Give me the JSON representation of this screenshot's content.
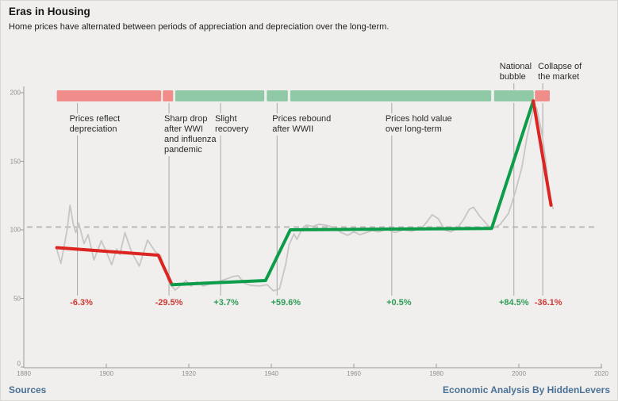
{
  "header": {
    "title": "Eras in Housing",
    "subtitle": "Home prices have alternated between periods of appreciation and depreciation over the long-term."
  },
  "footer": {
    "sources_label": "Sources",
    "credit": "Economic Analysis By HiddenLevers"
  },
  "colors": {
    "background": "#f0efed",
    "bar_red": "#f08c8a",
    "bar_green": "#90c9a5",
    "trend_red": "#dc2420",
    "trend_green": "#0d9c49",
    "index_gray": "#c7c6c4",
    "dashed_gray": "#bbbab8",
    "axis_gray": "#9a9a98",
    "era_line_gray": "#a8a7a5",
    "pct_red": "#d03a34",
    "pct_green": "#2f9e58",
    "footer_blue": "#4a7195"
  },
  "chart_data": {
    "type": "line",
    "title": "Eras in Housing",
    "x_axis": {
      "range": [
        1880,
        2020
      ],
      "ticks": [
        1880,
        1900,
        1920,
        1940,
        1960,
        1980,
        2000,
        2020
      ]
    },
    "y_axis": {
      "range": [
        0,
        210
      ],
      "ticks": [
        0,
        50,
        100,
        150,
        200
      ]
    },
    "reference_line": {
      "value": 102,
      "style": "dashed"
    },
    "eras": [
      {
        "name": "era-depreciation",
        "label_lines": [
          "Prices reflect",
          "depreciation"
        ],
        "change_pct": "-6.3%",
        "direction": "down",
        "start_year": 1888.0,
        "end_year": 1913.3,
        "tick_year": 1893.0,
        "label_position": "below"
      },
      {
        "name": "era-wwi-drop",
        "label_lines": [
          "Sharp drop",
          "after WWI",
          "and influenza",
          "pandemic"
        ],
        "change_pct": "-29.5%",
        "direction": "down",
        "start_year": 1913.7,
        "end_year": 1916.2,
        "tick_year": 1915.2,
        "label_position": "below"
      },
      {
        "name": "era-slight-recovery",
        "label_lines": [
          "Slight",
          "recovery"
        ],
        "change_pct": "+3.7%",
        "direction": "up",
        "start_year": 1916.7,
        "end_year": 1938.3,
        "tick_year": 1927.7,
        "label_position": "below"
      },
      {
        "name": "era-wwii-rebound",
        "label_lines": [
          "Prices rebound",
          "after WWII"
        ],
        "change_pct": "+59.6%",
        "direction": "up",
        "start_year": 1938.9,
        "end_year": 1944.0,
        "tick_year": 1941.4,
        "label_position": "below"
      },
      {
        "name": "era-hold-value",
        "label_lines": [
          "Prices hold value",
          "over long-term"
        ],
        "change_pct": "+0.5%",
        "direction": "up",
        "start_year": 1944.6,
        "end_year": 1993.3,
        "tick_year": 1969.2,
        "label_position": "below"
      },
      {
        "name": "era-national-bubble",
        "label_lines": [
          "National",
          "bubble"
        ],
        "change_pct": "+84.5%",
        "direction": "up",
        "start_year": 1994.0,
        "end_year": 2003.6,
        "tick_year": 1998.8,
        "label_position": "above"
      },
      {
        "name": "era-collapse",
        "label_lines": [
          "Collapse of",
          "the market"
        ],
        "change_pct": "-36.1%",
        "direction": "down",
        "start_year": 2003.9,
        "end_year": 2007.5,
        "tick_year": 2005.8,
        "label_position": "above"
      }
    ],
    "trend_segments": [
      {
        "direction": "down",
        "points": [
          [
            1888,
            87
          ],
          [
            1912.6,
            81.5
          ],
          [
            1915.9,
            60
          ]
        ]
      },
      {
        "direction": "up",
        "points": [
          [
            1915.9,
            60
          ],
          [
            1938.6,
            63
          ],
          [
            1944.6,
            100
          ],
          [
            1993.4,
            101
          ],
          [
            2003.5,
            194
          ]
        ]
      },
      {
        "direction": "down",
        "points": [
          [
            2003.5,
            194
          ],
          [
            2007.8,
            118
          ]
        ]
      }
    ],
    "index_series": {
      "name": "home-price-index",
      "points": [
        [
          1888,
          86
        ],
        [
          1889,
          75.5
        ],
        [
          1890.5,
          100
        ],
        [
          1891.2,
          118
        ],
        [
          1892,
          104
        ],
        [
          1892.6,
          98
        ],
        [
          1893.3,
          105
        ],
        [
          1894.6,
          90
        ],
        [
          1895.6,
          96.5
        ],
        [
          1897,
          78
        ],
        [
          1898.8,
          92
        ],
        [
          1900,
          84
        ],
        [
          1901.3,
          74.5
        ],
        [
          1902.5,
          86
        ],
        [
          1903.3,
          82
        ],
        [
          1904.5,
          98
        ],
        [
          1906,
          85
        ],
        [
          1906.8,
          80
        ],
        [
          1908,
          73.5
        ],
        [
          1910,
          92.5
        ],
        [
          1911.9,
          84
        ],
        [
          1913.2,
          81
        ],
        [
          1915.1,
          62
        ],
        [
          1916.7,
          56
        ],
        [
          1919.3,
          63
        ],
        [
          1920.5,
          59
        ],
        [
          1922,
          62
        ],
        [
          1923.5,
          59
        ],
        [
          1925,
          60.5
        ],
        [
          1927,
          62
        ],
        [
          1929,
          64
        ],
        [
          1930.8,
          66
        ],
        [
          1932,
          66.5
        ],
        [
          1933.5,
          61
        ],
        [
          1935,
          59.5
        ],
        [
          1937.2,
          59
        ],
        [
          1939,
          60
        ],
        [
          1940.5,
          55.5
        ],
        [
          1942,
          57
        ],
        [
          1943.5,
          75
        ],
        [
          1944.3,
          89
        ],
        [
          1945.5,
          97
        ],
        [
          1946.2,
          93
        ],
        [
          1947.5,
          101
        ],
        [
          1948.5,
          103.5
        ],
        [
          1950,
          102.5
        ],
        [
          1951.5,
          104
        ],
        [
          1953,
          103.5
        ],
        [
          1955,
          102
        ],
        [
          1957,
          98
        ],
        [
          1958.5,
          96
        ],
        [
          1960,
          98.5
        ],
        [
          1961.5,
          96.5
        ],
        [
          1963,
          98
        ],
        [
          1964.5,
          99.5
        ],
        [
          1966,
          98.5
        ],
        [
          1968,
          100.5
        ],
        [
          1970,
          98
        ],
        [
          1972,
          100
        ],
        [
          1974,
          99
        ],
        [
          1976.3,
          101
        ],
        [
          1977.5,
          105
        ],
        [
          1979,
          111
        ],
        [
          1980.5,
          108
        ],
        [
          1982,
          100
        ],
        [
          1983.5,
          98.5
        ],
        [
          1985,
          101
        ],
        [
          1986.5,
          107
        ],
        [
          1988,
          115
        ],
        [
          1989,
          116.5
        ],
        [
          1990.5,
          110
        ],
        [
          1992.7,
          102.5
        ],
        [
          1994,
          101.5
        ],
        [
          1995.5,
          104
        ],
        [
          1997.5,
          112
        ],
        [
          1999,
          126
        ],
        [
          2000.7,
          145
        ],
        [
          2002,
          168
        ],
        [
          2003.5,
          188
        ],
        [
          2004.3,
          189
        ],
        [
          2005.5,
          172
        ],
        [
          2006.5,
          151
        ],
        [
          2007.4,
          126
        ],
        [
          2008.3,
          115.5
        ]
      ]
    }
  }
}
